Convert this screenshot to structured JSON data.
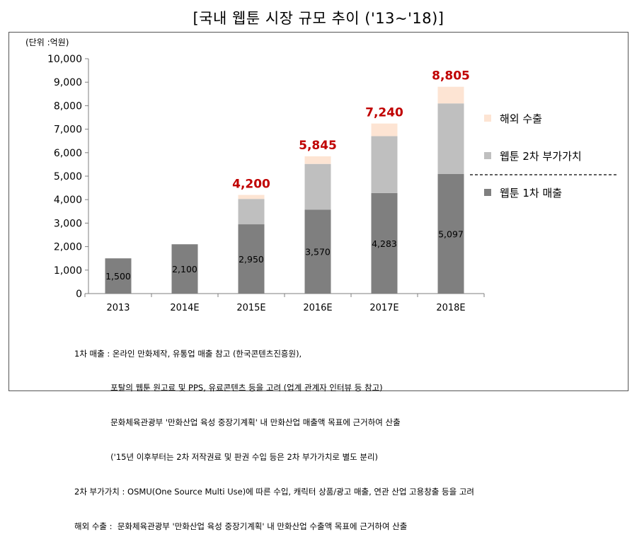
{
  "title": "[국내 웹툰 시장 규모 추이 ('13~'18)]",
  "chart_data": {
    "type": "bar",
    "stacked": true,
    "unit_label": "(단위 :억원)",
    "categories": [
      "2013",
      "2014E",
      "2015E",
      "2016E",
      "2017E",
      "2018E"
    ],
    "series": [
      {
        "name": "웹툰 1차 매출",
        "color": "#7f7f7f",
        "values": [
          1500,
          2100,
          2950,
          3570,
          4283,
          5097
        ]
      },
      {
        "name": "웹툰 2차 부가가치",
        "color": "#bfbfbf",
        "values": [
          0,
          0,
          1080,
          1950,
          2420,
          3000
        ]
      },
      {
        "name": "해외 수출",
        "color": "#fde4d3",
        "values": [
          0,
          0,
          170,
          325,
          537,
          708
        ]
      }
    ],
    "bottom_labels": [
      "1,500",
      "2,100",
      "2,950",
      "3,570",
      "4,283",
      "5,097"
    ],
    "total_labels": [
      "",
      "",
      "4,200",
      "5,845",
      "7,240",
      "8,805"
    ],
    "total_label_color": "#c00000",
    "ylim": [
      0,
      10000
    ],
    "yticks": [
      "0",
      "1,000",
      "2,000",
      "3,000",
      "4,000",
      "5,000",
      "6,000",
      "7,000",
      "8,000",
      "9,000",
      "10,000"
    ],
    "legend_position": "right",
    "legend_order": [
      "해외 수출",
      "웹툰 2차 부가가치",
      "웹툰 1차 매출"
    ],
    "grid": false
  },
  "notes": [
    "1차 매출 : 온라인 만화제작, 유통업 매출 참고 (한국콘텐츠진흥원),",
    "              포탈의 웹툰 원고료 및 PPS, 유료콘텐츠 등을 고려 (업계 관계자 인터뷰 등 참고)",
    "              문화체육관광부 '만화산업 육성 중장기계획' 내 만화산업 매출액 목표에 근거하여 산출",
    "              ('15년 이후부터는 2차 저작권료 및 판권 수입 등은 2차 부가가치로 별도 분리)",
    "2차 부가가치 : OSMU(One Source Multi Use)에 따른 수입, 캐릭터 상품/광고 매출, 연관 산업 고용창출 등을 고려",
    "해외 수출 :  문화체육관광부 '만화산업 육성 중장기계획' 내 만화산업 수출액 목표에 근거하여 산출"
  ]
}
